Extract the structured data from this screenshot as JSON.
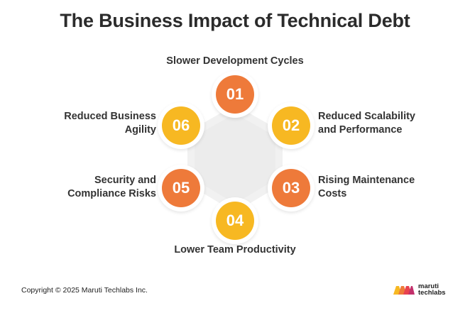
{
  "title": "The Business Impact of Technical Debt",
  "colors": {
    "orange": "#EE7A3A",
    "yellow": "#F7B822",
    "hex_fill": "#F1F1F1",
    "text": "#333333"
  },
  "steps": [
    {
      "number": "01",
      "label_lines": [
        "Slower Development Cycles"
      ],
      "color": "orange"
    },
    {
      "number": "02",
      "label_lines": [
        "Reduced Scalability",
        "and Performance"
      ],
      "color": "yellow"
    },
    {
      "number": "03",
      "label_lines": [
        "Rising Maintenance",
        "Costs"
      ],
      "color": "orange"
    },
    {
      "number": "04",
      "label_lines": [
        "Lower Team Productivity"
      ],
      "color": "yellow"
    },
    {
      "number": "05",
      "label_lines": [
        "Security and",
        "Compliance Risks"
      ],
      "color": "orange"
    },
    {
      "number": "06",
      "label_lines": [
        "Reduced Business",
        "Agility"
      ],
      "color": "yellow"
    }
  ],
  "footer": {
    "copyright": "Copyright © 2025 Maruti Techlabs Inc.",
    "logo_line1": "maruti",
    "logo_line2": "techlabs",
    "logo_icon": "maruti-logo-icon"
  }
}
